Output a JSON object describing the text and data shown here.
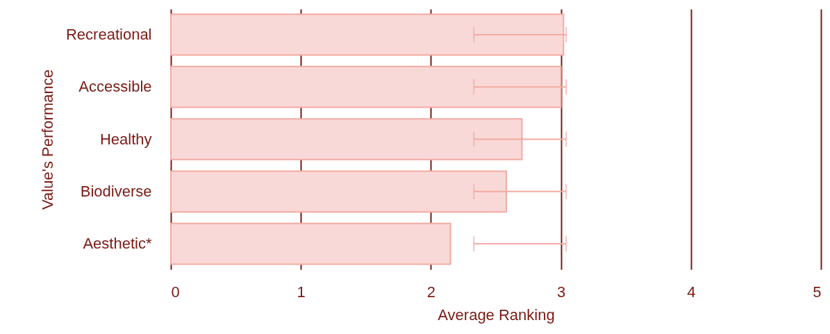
{
  "chart_data": {
    "type": "bar",
    "orientation": "horizontal",
    "xlabel": "Average Ranking",
    "ylabel": "Value's Performance",
    "categories": [
      "Recreational",
      "Accessible",
      "Healthy",
      "Biodiverse",
      "Aesthetic*"
    ],
    "values": [
      3.02,
      3.0,
      2.7,
      2.58,
      2.15
    ],
    "errors": [
      [
        2.33,
        3.04
      ],
      [
        2.33,
        3.04
      ],
      [
        2.33,
        3.04
      ],
      [
        2.33,
        3.04
      ],
      [
        2.33,
        3.04
      ]
    ],
    "color": "#f9d9d7",
    "xlim": [
      0,
      5
    ],
    "xticks": [
      0,
      1,
      2,
      3,
      4,
      5
    ],
    "grid": "x"
  }
}
